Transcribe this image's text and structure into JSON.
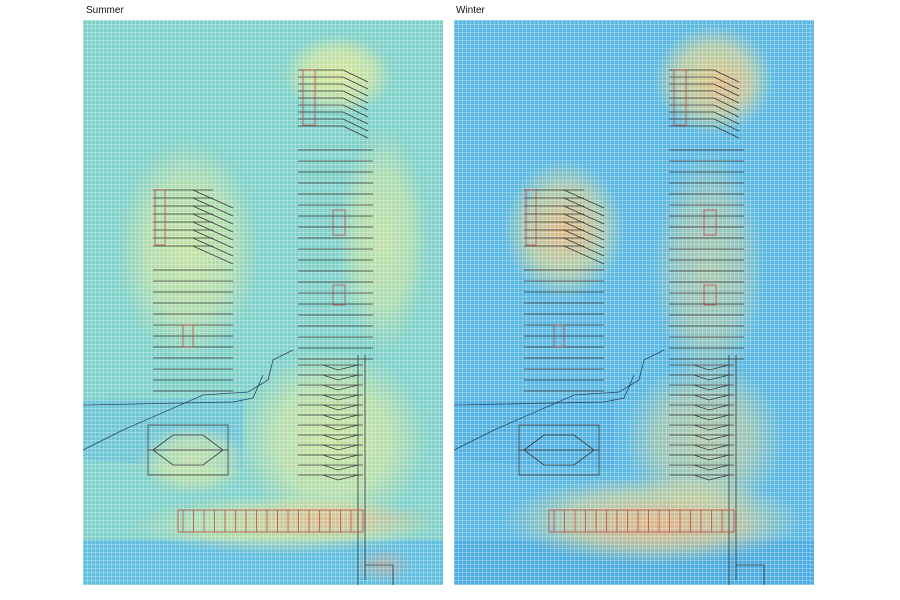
{
  "panels": [
    {
      "title": "Summer",
      "base_color": "#7fd0c8",
      "hot_color": "#f3ee8c",
      "water_color": "#58b8e4"
    },
    {
      "title": "Winter",
      "base_color": "#5ab8e2",
      "hot_color": "#f6d87c",
      "water_color": "#4aa9de"
    }
  ],
  "colors": {
    "grid_line": "#ffffff",
    "plan_line": "#3a3a3a",
    "building_line": "#c0504d",
    "hot_spot": "#f0a07a"
  }
}
